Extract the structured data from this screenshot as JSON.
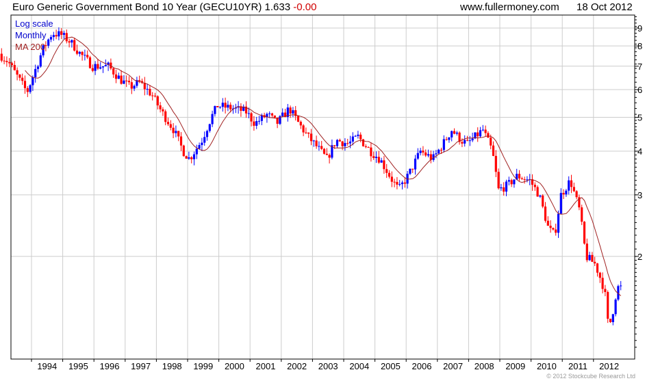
{
  "header": {
    "title": "Euro Generic Government Bond 10 Year (GECU10YR) 1.633",
    "change": "-0.00",
    "site": "www.fullermoney.com",
    "date": "18 Oct 2012"
  },
  "legend": {
    "scale": "Log scale",
    "period": "Monthly",
    "ma": "MA 200"
  },
  "copyright": "© 2012 Stockcube Research Ltd",
  "colors": {
    "up": "#0000ff",
    "down": "#ff0000",
    "ma": "#a02020",
    "legend_blue": "#0000cc",
    "grid": "#cccccc"
  },
  "chart_data": {
    "type": "candlestick",
    "title": "Euro Generic Government Bond 10 Year (GECU10YR)",
    "yscale": "log",
    "ylim": [
      1.02,
      9.8
    ],
    "yticks": [
      "2",
      "3",
      "4",
      "5",
      "6",
      "7",
      "8",
      "9"
    ],
    "xlim": [
      1993.0,
      2012.95
    ],
    "xticks": [
      "1994",
      "1995",
      "1996",
      "1997",
      "1998",
      "1999",
      "2000",
      "2001",
      "2002",
      "2003",
      "2004",
      "2005",
      "2006",
      "2007",
      "2008",
      "2009",
      "2010",
      "2011",
      "2012"
    ],
    "keypoints": [
      [
        1993.0,
        7.6
      ],
      [
        1993.3,
        7.2
      ],
      [
        1993.7,
        6.3
      ],
      [
        1993.9,
        5.9
      ],
      [
        1994.1,
        6.6
      ],
      [
        1994.4,
        7.8
      ],
      [
        1994.7,
        8.7
      ],
      [
        1995.0,
        8.6
      ],
      [
        1995.3,
        8.2
      ],
      [
        1995.6,
        7.6
      ],
      [
        1996.0,
        7.0
      ],
      [
        1996.5,
        7.0
      ],
      [
        1996.9,
        6.4
      ],
      [
        1997.2,
        6.1
      ],
      [
        1997.5,
        6.3
      ],
      [
        1997.9,
        5.8
      ],
      [
        1998.2,
        5.2
      ],
      [
        1998.6,
        4.6
      ],
      [
        1998.9,
        4.0
      ],
      [
        1999.1,
        3.8
      ],
      [
        1999.5,
        4.3
      ],
      [
        1999.8,
        5.0
      ],
      [
        2000.0,
        5.4
      ],
      [
        2000.5,
        5.3
      ],
      [
        2000.9,
        5.2
      ],
      [
        2001.2,
        4.8
      ],
      [
        2001.6,
        5.1
      ],
      [
        2001.9,
        4.8
      ],
      [
        2002.3,
        5.3
      ],
      [
        2002.6,
        4.8
      ],
      [
        2002.9,
        4.4
      ],
      [
        2003.2,
        4.1
      ],
      [
        2003.5,
        3.8
      ],
      [
        2003.8,
        4.3
      ],
      [
        2004.2,
        4.2
      ],
      [
        2004.5,
        4.4
      ],
      [
        2004.9,
        4.0
      ],
      [
        2005.2,
        3.8
      ],
      [
        2005.6,
        3.3
      ],
      [
        2005.8,
        3.1
      ],
      [
        2006.1,
        3.4
      ],
      [
        2006.5,
        4.0
      ],
      [
        2006.9,
        3.8
      ],
      [
        2007.3,
        4.3
      ],
      [
        2007.5,
        4.6
      ],
      [
        2007.8,
        4.3
      ],
      [
        2008.0,
        4.2
      ],
      [
        2008.5,
        4.6
      ],
      [
        2008.8,
        4.0
      ],
      [
        2009.0,
        3.1
      ],
      [
        2009.3,
        3.2
      ],
      [
        2009.6,
        3.4
      ],
      [
        2010.0,
        3.3
      ],
      [
        2010.3,
        3.0
      ],
      [
        2010.6,
        2.4
      ],
      [
        2010.8,
        2.3
      ],
      [
        2011.0,
        3.0
      ],
      [
        2011.3,
        3.3
      ],
      [
        2011.6,
        2.7
      ],
      [
        2011.8,
        2.0
      ],
      [
        2012.1,
        1.9
      ],
      [
        2012.4,
        1.6
      ],
      [
        2012.5,
        1.3
      ],
      [
        2012.6,
        1.3
      ],
      [
        2012.8,
        1.63
      ]
    ],
    "last": 1.633
  }
}
